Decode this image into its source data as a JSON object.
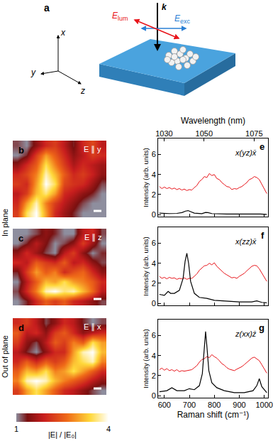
{
  "schematic": {
    "panel": "a",
    "wavevector": "k",
    "E_lum": {
      "symbol": "E",
      "subscript": "lum"
    },
    "E_exc": {
      "symbol": "E",
      "subscript": "exc"
    },
    "axes": [
      "x",
      "y",
      "z"
    ]
  },
  "side_labels": [
    "In plane",
    "Out of plane"
  ],
  "chart_data": [
    {
      "type": "heatmap",
      "panel": "b",
      "title": "E ∥ y",
      "tick_labels": false,
      "grid": false,
      "colorbar": {
        "range": [
          1,
          4
        ],
        "ticks": [
          1,
          4
        ],
        "label": "|E| / |E₀|"
      },
      "cells": [
        [
          1.2,
          1.0,
          1.5,
          2.0,
          2.2,
          1.8,
          1.3,
          2.0,
          2.3,
          1.8
        ],
        [
          1.0,
          1.3,
          2.2,
          3.0,
          2.5,
          2.0,
          1.5,
          1.8,
          2.2,
          2.0
        ],
        [
          1.5,
          2.0,
          2.5,
          3.5,
          2.8,
          2.2,
          1.7,
          2.0,
          1.8,
          1.6
        ],
        [
          2.0,
          2.3,
          2.8,
          3.8,
          3.2,
          2.5,
          2.0,
          2.2,
          1.9,
          1.5
        ],
        [
          2.2,
          2.0,
          3.0,
          4.0,
          3.5,
          2.3,
          2.1,
          2.0,
          1.6,
          1.2
        ],
        [
          1.8,
          2.2,
          3.2,
          3.6,
          3.0,
          2.0,
          1.8,
          1.5,
          1.3,
          1.0
        ],
        [
          2.0,
          3.0,
          3.8,
          2.8,
          2.2,
          1.8,
          1.5,
          1.2,
          1.0,
          1.0
        ],
        [
          2.2,
          3.5,
          4.0,
          3.0,
          2.0,
          1.6,
          1.3,
          1.0,
          1.0,
          1.0
        ]
      ]
    },
    {
      "type": "heatmap",
      "panel": "c",
      "title": "E ∥ z",
      "tick_labels": false,
      "grid": false,
      "cells": [
        [
          1.0,
          1.0,
          1.2,
          1.5,
          1.3,
          1.0,
          1.0,
          1.8,
          2.0,
          1.2
        ],
        [
          1.0,
          1.3,
          1.8,
          1.4,
          1.0,
          1.2,
          1.5,
          2.2,
          1.6,
          1.0
        ],
        [
          1.5,
          2.0,
          1.6,
          1.2,
          1.0,
          1.8,
          2.2,
          1.5,
          1.0,
          1.3
        ],
        [
          2.0,
          1.8,
          2.5,
          2.2,
          2.0,
          2.5,
          1.8,
          2.0,
          1.5,
          1.2
        ],
        [
          1.3,
          2.2,
          3.0,
          2.5,
          2.8,
          2.0,
          2.4,
          2.6,
          2.0,
          1.5
        ],
        [
          1.0,
          1.8,
          2.5,
          3.2,
          3.0,
          3.5,
          3.0,
          2.8,
          2.5,
          2.0
        ],
        [
          1.2,
          2.0,
          2.8,
          3.8,
          4.0,
          3.6,
          3.8,
          3.2,
          2.6,
          1.8
        ],
        [
          1.0,
          1.3,
          2.0,
          2.5,
          2.2,
          2.5,
          2.0,
          1.8,
          1.5,
          1.2
        ]
      ]
    },
    {
      "type": "heatmap",
      "panel": "d",
      "title": "E ∥ x",
      "tick_labels": false,
      "grid": false,
      "cells": [
        [
          2.0,
          2.2,
          1.8,
          1.2,
          1.5,
          2.0,
          1.8,
          1.3,
          1.0,
          1.2
        ],
        [
          2.5,
          1.8,
          2.0,
          1.5,
          2.2,
          2.5,
          2.0,
          1.5,
          1.8,
          2.0
        ],
        [
          2.2,
          1.5,
          1.2,
          1.8,
          2.5,
          2.2,
          2.8,
          2.5,
          3.5,
          3.0
        ],
        [
          1.8,
          1.3,
          1.0,
          1.5,
          2.0,
          2.0,
          3.0,
          3.8,
          4.0,
          3.2
        ],
        [
          2.0,
          2.5,
          2.0,
          2.5,
          2.2,
          2.5,
          3.2,
          3.5,
          3.8,
          2.8
        ],
        [
          2.5,
          3.2,
          3.0,
          3.5,
          2.8,
          3.0,
          3.5,
          3.0,
          2.5,
          2.0
        ],
        [
          2.8,
          3.8,
          4.0,
          3.8,
          3.2,
          2.8,
          2.5,
          2.2,
          1.8,
          1.5
        ],
        [
          2.2,
          3.0,
          3.5,
          3.0,
          2.5,
          2.0,
          1.8,
          1.5,
          1.2,
          1.0
        ]
      ]
    },
    {
      "type": "line",
      "panel": "e",
      "title": "x(yz)x̄",
      "tick_labels": "y",
      "grid": false,
      "xlim": [
        575,
        1015
      ],
      "xticks": [
        600,
        700,
        800,
        900,
        1000
      ],
      "ylim": [
        -0.2,
        7.6
      ],
      "yticks": [
        0,
        2,
        4,
        6
      ],
      "y_label": "Intensity (arb. units)",
      "x2lim": [
        1027,
        1082
      ],
      "x2ticks": [
        1030,
        1050,
        1075
      ],
      "x2_label": "Wavelength (nm)",
      "series": [
        {
          "color": "#e8151b",
          "x": [
            580,
            590,
            600,
            610,
            620,
            630,
            640,
            650,
            660,
            670,
            680,
            690,
            700,
            710,
            720,
            730,
            740,
            750,
            760,
            770,
            780,
            790,
            800,
            810,
            820,
            830,
            840,
            850,
            860,
            870,
            880,
            890,
            900,
            910,
            920,
            930,
            940,
            950,
            960,
            970,
            980,
            990,
            1000,
            1010
          ],
          "values": [
            2.8,
            2.6,
            2.75,
            2.6,
            2.7,
            2.55,
            2.65,
            2.5,
            2.6,
            2.45,
            2.55,
            2.4,
            2.5,
            2.45,
            2.7,
            2.9,
            3.3,
            3.5,
            3.8,
            3.7,
            4.1,
            3.9,
            4.0,
            3.6,
            3.5,
            3.2,
            3.0,
            2.8,
            2.75,
            2.5,
            2.6,
            2.55,
            2.7,
            2.8,
            3.0,
            3.2,
            3.5,
            3.6,
            3.8,
            3.7,
            3.5,
            3.0,
            2.6,
            2.1
          ]
        },
        {
          "color": "#000000",
          "x": [
            580,
            620,
            650,
            670,
            685,
            695,
            705,
            720,
            750,
            765,
            775,
            790,
            850,
            950,
            970,
            985,
            1010
          ],
          "values": [
            0.15,
            0.1,
            0.12,
            0.2,
            0.35,
            0.4,
            0.3,
            0.15,
            0.1,
            0.22,
            0.2,
            0.1,
            0.05,
            0.05,
            0.1,
            0.05,
            0.02
          ]
        }
      ]
    },
    {
      "type": "line",
      "panel": "f",
      "title": "x(zz)x̄",
      "tick_labels": "y",
      "grid": false,
      "xlim": [
        575,
        1015
      ],
      "xticks": [
        600,
        700,
        800,
        900,
        1000
      ],
      "ylim": [
        -0.2,
        7.6
      ],
      "yticks": [
        0,
        2,
        4,
        6
      ],
      "y_label": "Intensity (arb. units)",
      "series": [
        {
          "color": "#e8151b",
          "x": [
            580,
            590,
            600,
            610,
            620,
            630,
            640,
            650,
            660,
            670,
            680,
            690,
            700,
            710,
            720,
            730,
            740,
            750,
            760,
            770,
            780,
            790,
            800,
            810,
            820,
            830,
            840,
            850,
            860,
            870,
            880,
            890,
            900,
            910,
            920,
            930,
            940,
            950,
            960,
            970,
            980,
            990,
            1000,
            1010
          ],
          "values": [
            2.7,
            2.5,
            2.6,
            2.45,
            2.6,
            2.5,
            2.55,
            2.4,
            2.5,
            2.45,
            2.55,
            2.4,
            2.5,
            2.5,
            2.7,
            2.95,
            3.3,
            3.5,
            3.75,
            3.8,
            4.0,
            3.85,
            4.05,
            3.7,
            3.45,
            3.25,
            3.0,
            2.85,
            2.7,
            2.55,
            2.6,
            2.5,
            2.7,
            2.85,
            3.0,
            3.25,
            3.45,
            3.7,
            3.8,
            3.75,
            3.45,
            3.05,
            2.6,
            2.2
          ]
        },
        {
          "color": "#000000",
          "x": [
            580,
            600,
            615,
            625,
            640,
            660,
            675,
            683,
            690,
            697,
            705,
            720,
            740,
            770,
            800,
            850,
            900,
            950,
            970,
            990,
            1010
          ],
          "values": [
            0.9,
            0.8,
            1.2,
            1.0,
            1.0,
            1.3,
            2.5,
            4.2,
            5.0,
            4.0,
            2.2,
            1.0,
            0.6,
            0.5,
            0.3,
            0.2,
            0.15,
            0.15,
            0.25,
            0.1,
            0.05
          ]
        }
      ]
    },
    {
      "type": "line",
      "panel": "g",
      "title": "z(xx)z̄",
      "grid": false,
      "xlim": [
        575,
        1015
      ],
      "xticks": [
        600,
        700,
        800,
        900,
        1000
      ],
      "x_label": "Raman shift (cm⁻¹)",
      "ylim": [
        -0.2,
        7.6
      ],
      "yticks": [
        0,
        2,
        4,
        6
      ],
      "y_label": "Intensity (arb. units)",
      "series": [
        {
          "color": "#e8151b",
          "x": [
            580,
            590,
            600,
            610,
            620,
            630,
            640,
            650,
            660,
            670,
            680,
            690,
            700,
            710,
            720,
            730,
            740,
            750,
            760,
            770,
            780,
            790,
            800,
            810,
            820,
            830,
            840,
            850,
            860,
            870,
            880,
            890,
            900,
            910,
            920,
            930,
            940,
            950,
            960,
            970,
            980,
            990,
            1000,
            1010
          ],
          "values": [
            2.6,
            2.75,
            2.55,
            2.7,
            2.5,
            2.6,
            2.45,
            2.6,
            2.4,
            2.5,
            2.45,
            2.5,
            2.55,
            2.6,
            2.8,
            3.0,
            3.35,
            3.6,
            3.7,
            3.9,
            3.8,
            4.1,
            3.9,
            3.75,
            3.5,
            3.2,
            3.05,
            2.8,
            2.65,
            2.6,
            2.5,
            2.65,
            2.75,
            2.9,
            3.1,
            3.3,
            3.5,
            3.75,
            3.85,
            3.7,
            3.5,
            3.1,
            2.65,
            2.25
          ]
        },
        {
          "color": "#000000",
          "x": [
            580,
            610,
            630,
            650,
            680,
            700,
            720,
            740,
            752,
            760,
            765,
            770,
            778,
            790,
            810,
            840,
            880,
            920,
            955,
            970,
            980,
            990,
            1010
          ],
          "values": [
            0.4,
            0.5,
            0.8,
            0.5,
            0.5,
            0.7,
            0.6,
            1.0,
            2.2,
            4.5,
            6.4,
            5.0,
            2.5,
            1.3,
            0.8,
            0.5,
            0.3,
            0.3,
            0.5,
            1.0,
            1.7,
            0.9,
            0.3
          ]
        }
      ]
    }
  ]
}
